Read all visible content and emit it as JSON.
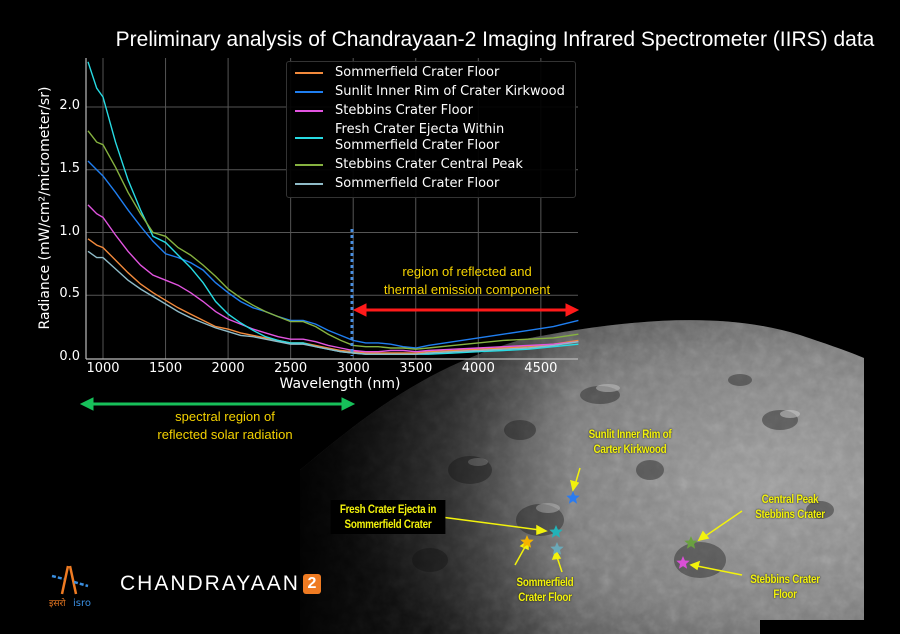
{
  "title": "Preliminary analysis of Chandrayaan-2 Imaging Infrared Spectrometer (IIRS) data",
  "chart_data": {
    "type": "line",
    "title": "Preliminary analysis of Chandrayaan-2 Imaging Infrared Spectrometer (IIRS) data",
    "xlabel": "Wavelength (nm)",
    "ylabel": "Radiance (mW/cm²/micrometer/sr)",
    "xlim": [
      860,
      4800
    ],
    "ylim": [
      0,
      2.4
    ],
    "xticks": [
      1000,
      1500,
      2000,
      2500,
      3000,
      3500,
      4000,
      4500
    ],
    "yticks": [
      0.0,
      0.5,
      1.0,
      1.5,
      2.0
    ],
    "grid": true,
    "legend_position": "upper right",
    "x": [
      880,
      950,
      1000,
      1100,
      1200,
      1300,
      1400,
      1500,
      1600,
      1700,
      1800,
      1900,
      2000,
      2100,
      2200,
      2300,
      2400,
      2500,
      2600,
      2700,
      2800,
      2900,
      3000,
      3100,
      3200,
      3300,
      3400,
      3500,
      3600,
      3800,
      4000,
      4200,
      4400,
      4600,
      4800
    ],
    "series": [
      {
        "name": "Sommerfield Crater Floor",
        "color": "#f28a3c",
        "values": [
          0.95,
          0.9,
          0.88,
          0.78,
          0.68,
          0.59,
          0.52,
          0.46,
          0.4,
          0.35,
          0.3,
          0.25,
          0.23,
          0.2,
          0.18,
          0.16,
          0.14,
          0.12,
          0.12,
          0.1,
          0.08,
          0.06,
          0.05,
          0.04,
          0.04,
          0.04,
          0.04,
          0.04,
          0.05,
          0.06,
          0.07,
          0.08,
          0.09,
          0.11,
          0.14
        ]
      },
      {
        "name": "Sunlit Inner Rim of Crater Kirkwood",
        "color": "#1f7ef0",
        "values": [
          1.57,
          1.5,
          1.45,
          1.32,
          1.18,
          1.05,
          0.93,
          0.83,
          0.8,
          0.76,
          0.7,
          0.6,
          0.52,
          0.45,
          0.4,
          0.37,
          0.33,
          0.3,
          0.3,
          0.27,
          0.22,
          0.18,
          0.14,
          0.12,
          0.12,
          0.11,
          0.09,
          0.08,
          0.1,
          0.13,
          0.16,
          0.19,
          0.22,
          0.25,
          0.3
        ]
      },
      {
        "name": "Stebbins Crater Floor",
        "color": "#e254e0",
        "values": [
          1.22,
          1.15,
          1.12,
          0.98,
          0.85,
          0.74,
          0.66,
          0.62,
          0.58,
          0.52,
          0.45,
          0.37,
          0.31,
          0.27,
          0.23,
          0.2,
          0.17,
          0.15,
          0.15,
          0.13,
          0.1,
          0.08,
          0.06,
          0.05,
          0.05,
          0.06,
          0.06,
          0.05,
          0.06,
          0.07,
          0.08,
          0.09,
          0.1,
          0.11,
          0.13
        ]
      },
      {
        "name": "Fresh Crater Ejecta Within Sommerfield Crater Floor",
        "color": "#27dbe3",
        "values": [
          2.36,
          2.15,
          2.08,
          1.72,
          1.42,
          1.18,
          0.97,
          0.92,
          0.82,
          0.72,
          0.6,
          0.45,
          0.35,
          0.28,
          0.22,
          0.17,
          0.14,
          0.12,
          0.12,
          0.09,
          0.07,
          0.05,
          0.04,
          0.03,
          0.03,
          0.03,
          0.03,
          0.03,
          0.03,
          0.04,
          0.05,
          0.06,
          0.07,
          0.09,
          0.11
        ]
      },
      {
        "name": "Stebbins Crater Central Peak",
        "color": "#86b240",
        "values": [
          1.81,
          1.72,
          1.7,
          1.52,
          1.32,
          1.15,
          1.0,
          0.97,
          0.88,
          0.82,
          0.74,
          0.65,
          0.55,
          0.48,
          0.42,
          0.37,
          0.33,
          0.29,
          0.29,
          0.25,
          0.19,
          0.14,
          0.1,
          0.09,
          0.09,
          0.08,
          0.08,
          0.07,
          0.08,
          0.1,
          0.12,
          0.14,
          0.15,
          0.16,
          0.19
        ]
      },
      {
        "name": "Sommerfield Crater Floor",
        "color": "#8fbbc8",
        "values": [
          0.85,
          0.8,
          0.8,
          0.71,
          0.62,
          0.55,
          0.49,
          0.43,
          0.37,
          0.32,
          0.28,
          0.24,
          0.21,
          0.18,
          0.17,
          0.15,
          0.13,
          0.11,
          0.11,
          0.09,
          0.07,
          0.05,
          0.04,
          0.03,
          0.03,
          0.03,
          0.03,
          0.03,
          0.04,
          0.05,
          0.06,
          0.07,
          0.08,
          0.1,
          0.13
        ]
      }
    ],
    "annotations": [
      {
        "type": "vline",
        "x": 3000,
        "style": "dotted",
        "color": "#4a8fe0"
      },
      {
        "type": "double-arrow",
        "from": 3000,
        "to": 4800,
        "color": "#ff1a1a",
        "text": "region of reflected and thermal emission component"
      },
      {
        "type": "double-arrow",
        "from": 860,
        "to": 3000,
        "color": "#17c05a",
        "text": "spectral region of reflected solar radiation"
      }
    ]
  },
  "legend": [
    {
      "label": "Sommerfield Crater Floor",
      "color": "#f28a3c"
    },
    {
      "label": "Sunlit Inner Rim of Crater Kirkwood",
      "color": "#1f7ef0"
    },
    {
      "label": "Stebbins Crater Floor",
      "color": "#e254e0"
    },
    {
      "label": "Fresh Crater Ejecta Within\nSommerfield Crater Floor",
      "color": "#27dbe3"
    },
    {
      "label": "Stebbins Crater Central Peak",
      "color": "#86b240"
    },
    {
      "label": "Sommerfield Crater Floor",
      "color": "#8fbbc8"
    }
  ],
  "axes": {
    "ylabel": "Radiance (mW/cm²/micrometer/sr)",
    "xlabel": "Wavelength (nm)",
    "xticks": [
      "1000",
      "1500",
      "2000",
      "2500",
      "3000",
      "3500",
      "4000",
      "4500"
    ],
    "yticks": [
      "0.0",
      "0.5",
      "1.0",
      "1.5",
      "2.0"
    ]
  },
  "annotations": {
    "thermal_line1": "region of reflected and",
    "thermal_line2": "thermal emission component",
    "solar_line1": "spectral region of",
    "solar_line2": "reflected solar radiation"
  },
  "map_labels": {
    "kirkwood_1": "Sunlit Inner Rim of",
    "kirkwood_2": "Carter Kirkwood",
    "ejecta_1": "Fresh Crater Ejecta in",
    "ejecta_2": "Sommerfield Crater",
    "somm_floor_1": "Sommerfield",
    "somm_floor_2": "Crater Floor",
    "central_peak_1": "Central Peak",
    "central_peak_2": "Stebbins Crater",
    "stebbins_floor_1": "Stebbins Crater",
    "stebbins_floor_2": "Floor"
  },
  "markers": [
    {
      "name": "kirkwood",
      "color": "#2a7bf0"
    },
    {
      "name": "ejecta",
      "color": "#22b3b8"
    },
    {
      "name": "somm-floor-a",
      "color": "#f5b400"
    },
    {
      "name": "somm-floor-b",
      "color": "#6aa9b8"
    },
    {
      "name": "central-peak",
      "color": "#6aa040"
    },
    {
      "name": "stebbins-floor",
      "color": "#d94fd6"
    }
  ],
  "brand": {
    "name": "CHANDRAYAAN",
    "number": "2",
    "agency_hindi": "इसरो",
    "agency": "isro"
  }
}
